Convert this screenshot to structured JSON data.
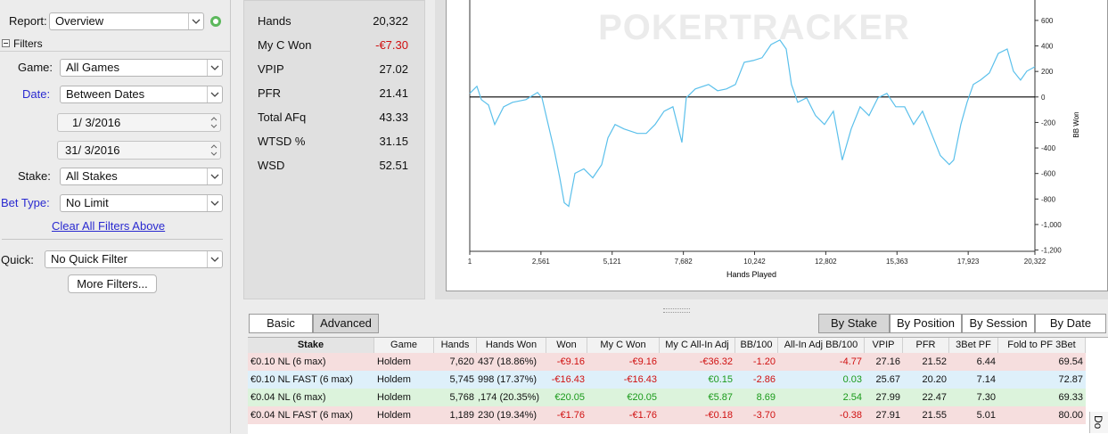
{
  "filters": {
    "report_label": "Report:",
    "report": "Overview",
    "section": "Filters",
    "game_label": "Game:",
    "game": "All Games",
    "date_label": "Date:",
    "date": "Between Dates",
    "date_from": "1/ 3/2016",
    "date_to": "31/ 3/2016",
    "stake_label": "Stake:",
    "stake": "All Stakes",
    "bet_type_label": "Bet Type:",
    "bet_type": "No Limit",
    "clear_link": "Clear All Filters Above",
    "quick_label": "Quick:",
    "quick": "No Quick Filter",
    "more_button": "More Filters..."
  },
  "stats": [
    {
      "label": "Hands",
      "value": "20,322"
    },
    {
      "label": "My C Won",
      "value": "-€7.30"
    },
    {
      "label": "VPIP",
      "value": "27.02"
    },
    {
      "label": "PFR",
      "value": "21.41"
    },
    {
      "label": "Total AFq",
      "value": "43.33"
    },
    {
      "label": "WTSD %",
      "value": "31.15"
    },
    {
      "label": "WSD",
      "value": "52.51"
    }
  ],
  "chart_data": {
    "type": "line",
    "xlabel": "Hands Played",
    "ylabel": "BB Won",
    "watermark": "POKERTRACKER",
    "color": "#5bc0eb",
    "xlim": [
      1,
      20322
    ],
    "xticks": [
      1,
      {
        "value": 2561,
        "label": "2,561"
      },
      {
        "value": 5121,
        "label": "5,121"
      },
      {
        "value": 7682,
        "label": "7,682"
      },
      {
        "value": 10242,
        "label": "10,242"
      },
      {
        "value": 12802,
        "label": "12,802"
      },
      {
        "value": 15363,
        "label": "15,363"
      },
      {
        "value": 17923,
        "label": "17,923"
      },
      {
        "value": 20322,
        "label": "20,322"
      }
    ],
    "ylim": [
      -1210,
      760
    ],
    "yticks": [
      600,
      400,
      200,
      0,
      -200,
      -400,
      -600,
      -800,
      {
        "value": -1000,
        "label": "-1,000"
      },
      {
        "value": -1200,
        "label": "-1,200"
      }
    ],
    "x": [
      1,
      257,
      417,
      673,
      898,
      1218,
      1539,
      2019,
      2436,
      2597,
      2821,
      3046,
      3238,
      3398,
      3558,
      3782,
      4103,
      4423,
      4744,
      4968,
      5224,
      5545,
      6025,
      6346,
      6666,
      6987,
      7307,
      7628,
      7788,
      8109,
      8589,
      8910,
      9230,
      9551,
      9871,
      10192,
      10512,
      10833,
      11153,
      11378,
      11570,
      11794,
      12115,
      12435,
      12756,
      13076,
      13397,
      13717,
      14038,
      14358,
      14679,
      14999,
      15320,
      15640,
      15961,
      16281,
      16602,
      16922,
      17243,
      17403,
      17659,
      17884,
      18108,
      18365,
      18685,
      19006,
      19326,
      19550,
      19807,
      20031,
      20322
    ],
    "values": [
      28,
      84,
      -21,
      -63,
      -216,
      -77,
      -42,
      -21,
      35,
      -7,
      -216,
      -425,
      -634,
      -829,
      -857,
      -599,
      -564,
      -634,
      -530,
      -321,
      -216,
      -251,
      -286,
      -286,
      -216,
      -112,
      -77,
      -356,
      -7,
      63,
      98,
      49,
      63,
      98,
      272,
      286,
      307,
      411,
      446,
      376,
      98,
      -42,
      -7,
      -146,
      -216,
      -112,
      -495,
      -251,
      -77,
      -146,
      -7,
      28,
      -77,
      -77,
      -216,
      -112,
      -286,
      -460,
      -530,
      -495,
      -216,
      -42,
      98,
      132,
      188,
      341,
      376,
      202,
      132,
      202,
      237
    ]
  },
  "tabs": {
    "left": [
      "Basic",
      "Advanced"
    ],
    "right": [
      "By Stake",
      "By Position",
      "By Session",
      "By Date"
    ]
  },
  "table": {
    "columns": [
      "Stake",
      "Game",
      "Hands",
      "Hands Won",
      "Won",
      "My C Won",
      "My C All-In Adj",
      "BB/100",
      "All-In Adj BB/100",
      "VPIP",
      "PFR",
      "3Bet PF",
      "Fold to PF 3Bet"
    ],
    "rows": [
      [
        "€0.10 NL (6 max)",
        "Holdem",
        "7,620",
        "437 (18.86%)",
        "-€9.16",
        "-€9.16",
        "-€36.32",
        "-1.20",
        "-4.77",
        "27.16",
        "21.52",
        "6.44",
        "69.54"
      ],
      [
        "€0.10 NL FAST (6 max)",
        "Holdem",
        "5,745",
        "998 (17.37%)",
        "-€16.43",
        "-€16.43",
        "€0.15",
        "-2.86",
        "0.03",
        "25.67",
        "20.20",
        "7.14",
        "72.87"
      ],
      [
        "€0.04 NL (6 max)",
        "Holdem",
        "5,768",
        ",174 (20.35%)",
        "€20.05",
        "€20.05",
        "€5.87",
        "8.69",
        "2.54",
        "27.99",
        "22.47",
        "7.30",
        "69.33"
      ],
      [
        "€0.04 NL FAST (6 max)",
        "Holdem",
        "1,189",
        "230 (19.34%)",
        "-€1.76",
        "-€1.76",
        "-€0.18",
        "-3.70",
        "-0.38",
        "27.91",
        "21.55",
        "5.01",
        "80.00"
      ]
    ]
  },
  "side_tab": "Do"
}
